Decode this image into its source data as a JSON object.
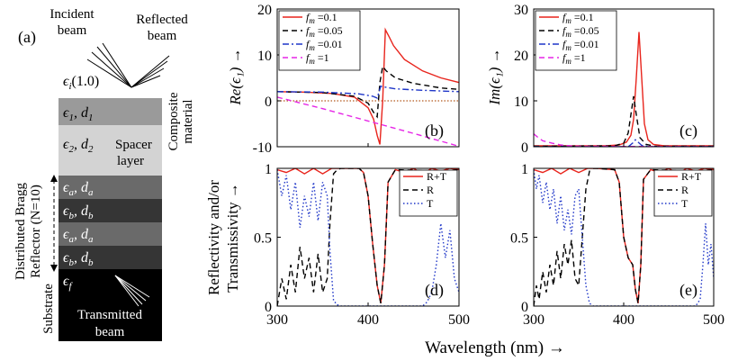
{
  "schematic": {
    "panel_label": "(a)",
    "incident_beam": [
      "Incident",
      "beam"
    ],
    "reflected_beam": [
      "Reflected",
      "beam"
    ],
    "eps_i": "ϵ",
    "eps_i_sub": "i",
    "eps_i_val": "(1.0)",
    "layer1_a": "ϵ",
    "layer1_sub": "1",
    "layer1_b": ", d",
    "layer1_sub2": "1",
    "composite_label": [
      "Composite",
      "material"
    ],
    "layer2_a": "ϵ",
    "layer2_sub": "2",
    "layer2_b": ", d",
    "layer2_sub2": "2",
    "spacer_label": [
      "Spacer",
      "layer"
    ],
    "dbr_label": [
      "Distributed Bragg",
      "Reflector (N=10)"
    ],
    "layer_a_sym": "ϵ",
    "layer_a_sub": "a",
    "layer_a_d": ", d",
    "layer_a_dsub": "a",
    "layer_b_sym": "ϵ",
    "layer_b_sub": "b",
    "layer_b_d": ", d",
    "layer_b_dsub": "b",
    "substrate_label": "Substrate",
    "eps_f": "ϵ",
    "eps_f_sub": "f",
    "transmitted_beam": [
      "Transmitted",
      "beam"
    ]
  },
  "colors": {
    "red": "#e8241c",
    "black": "#000000",
    "blue": "#1f36c8",
    "magenta": "#e626e6",
    "brown": "#b35a1f",
    "layer1": "#9a9a9a",
    "layer2": "#d3d3d3",
    "layer_a": "#6a6a6a",
    "layer_b": "#353535",
    "substrate": "#000000"
  },
  "chart_data": [
    {
      "id": "b",
      "type": "line",
      "panel_label": "(b)",
      "ylabel": "Re(ϵ₁) →",
      "xlim": [
        300,
        500
      ],
      "ylim": [
        -10,
        20
      ],
      "yticks": [
        "-10",
        "0",
        "10",
        "20"
      ],
      "legend": "top-left",
      "series": [
        {
          "name": "fm =0.1",
          "name_main": "f",
          "name_sub": "m",
          "name_rest": " =0.1",
          "color": "red",
          "style": "solid",
          "x": [
            300,
            330,
            360,
            385,
            400,
            406,
            410,
            413,
            416,
            419,
            423,
            428,
            440,
            460,
            480,
            500
          ],
          "y": [
            2,
            1.9,
            1.6,
            0.8,
            -1.5,
            -4,
            -7.5,
            -9.5,
            0,
            15.5,
            14,
            12,
            9,
            6.5,
            5,
            4
          ]
        },
        {
          "name": "fm =0.05",
          "name_main": "f",
          "name_sub": "m",
          "name_rest": " =0.05",
          "color": "black",
          "style": "dashed",
          "x": [
            300,
            350,
            385,
            400,
            406,
            410,
            413,
            416,
            420,
            430,
            450,
            480,
            500
          ],
          "y": [
            2,
            1.8,
            1,
            -0.5,
            -2.5,
            -3.5,
            4,
            7.5,
            6.5,
            5,
            3.8,
            2.8,
            2.5
          ]
        },
        {
          "name": "fm =0.01",
          "name_main": "f",
          "name_sub": "m",
          "name_rest": " =0.01",
          "color": "blue",
          "style": "dashdot",
          "x": [
            300,
            350,
            390,
            405,
            410,
            414,
            418,
            430,
            460,
            500
          ],
          "y": [
            2,
            1.9,
            1.5,
            1,
            0.6,
            3.2,
            3,
            2.6,
            2.3,
            2
          ]
        },
        {
          "name": "fm =1",
          "name_main": "f",
          "name_sub": "m",
          "name_rest": " =1",
          "color": "magenta",
          "style": "dashed",
          "x": [
            300,
            350,
            400,
            450,
            500
          ],
          "y": [
            0.8,
            -1.7,
            -4.4,
            -7.1,
            -9.9
          ]
        }
      ],
      "reference_line": {
        "y": 0,
        "color": "brown",
        "style": "dotted"
      }
    },
    {
      "id": "c",
      "type": "line",
      "panel_label": "(c)",
      "ylabel": "Im(ϵ₁) →",
      "xlim": [
        300,
        500
      ],
      "ylim": [
        0,
        30
      ],
      "yticks": [
        "0",
        "10",
        "20",
        "30"
      ],
      "legend": "top-left",
      "series": [
        {
          "name": "fm =0.1",
          "name_main": "f",
          "name_sub": "m",
          "name_rest": " =0.1",
          "color": "red",
          "style": "solid",
          "x": [
            300,
            380,
            395,
            403,
            408,
            411,
            414,
            417,
            420,
            423,
            427,
            433,
            445,
            500
          ],
          "y": [
            0.2,
            0.2,
            0.4,
            1,
            2.5,
            6,
            15,
            25,
            15,
            5,
            1.5,
            0.5,
            0.2,
            0.2
          ]
        },
        {
          "name": "fm =0.05",
          "name_main": "f",
          "name_sub": "m",
          "name_rest": " =0.05",
          "color": "black",
          "style": "dashed",
          "x": [
            300,
            390,
            400,
            405,
            408,
            411,
            414,
            418,
            425,
            435,
            500
          ],
          "y": [
            0.1,
            0.2,
            0.8,
            3,
            7,
            11,
            7,
            2,
            0.5,
            0.1,
            0.1
          ]
        },
        {
          "name": "fm =0.01",
          "name_main": "f",
          "name_sub": "m",
          "name_rest": " =0.01",
          "color": "blue",
          "style": "dashdot",
          "x": [
            300,
            405,
            410,
            413,
            416,
            420,
            430,
            500
          ],
          "y": [
            0,
            0,
            0.8,
            1.5,
            1,
            0.3,
            0,
            0
          ]
        },
        {
          "name": "fm =1",
          "name_main": "f",
          "name_sub": "m",
          "name_rest": " =1",
          "color": "magenta",
          "style": "dashed",
          "x": [
            300,
            305,
            310,
            320,
            330,
            340,
            350,
            500
          ],
          "y": [
            2.8,
            2,
            1.3,
            0.8,
            0.4,
            0.2,
            0.1,
            0
          ]
        }
      ]
    },
    {
      "id": "d",
      "type": "line",
      "panel_label": "(d)",
      "ylabel": [
        "Reflectivity and/or",
        "Transmissivity →"
      ],
      "xlim": [
        300,
        500
      ],
      "ylim": [
        0,
        1
      ],
      "yticks": [
        "0",
        "0.5",
        "1"
      ],
      "xticks": [
        "300",
        "400",
        "500"
      ],
      "legend": "top-right",
      "series": [
        {
          "name": "R+T",
          "color": "red",
          "style": "solid",
          "x": [
            300,
            310,
            320,
            330,
            340,
            350,
            360,
            370,
            390,
            395,
            400,
            405,
            410,
            414,
            418,
            422,
            430,
            440,
            450,
            460,
            470,
            480,
            490,
            500
          ],
          "y": [
            0.99,
            0.97,
            1,
            0.96,
            1,
            0.96,
            1,
            1,
            1,
            0.97,
            0.8,
            0.45,
            0.15,
            0.02,
            0.3,
            0.9,
            0.99,
            0.97,
            1,
            0.96,
            1,
            0.98,
            1,
            0.99
          ]
        },
        {
          "name": "R",
          "color": "black",
          "style": "dashed",
          "x": [
            300,
            305,
            310,
            315,
            320,
            325,
            330,
            335,
            340,
            345,
            350,
            355,
            358,
            362,
            366,
            370,
            390,
            395,
            400,
            405,
            410,
            414,
            418,
            422,
            430,
            480,
            500
          ],
          "y": [
            0,
            0.2,
            0.05,
            0.3,
            0.1,
            0.43,
            0.2,
            0.35,
            0.1,
            0.38,
            0.1,
            0.2,
            0.6,
            0.96,
            0.99,
            1,
            1,
            0.97,
            0.8,
            0.45,
            0.15,
            0.02,
            0.3,
            0.9,
            0.99,
            0.98,
            0.99
          ]
        },
        {
          "name": "T",
          "color": "blue",
          "style": "dotted",
          "x": [
            300,
            305,
            310,
            315,
            320,
            325,
            330,
            335,
            340,
            345,
            350,
            355,
            358,
            362,
            366,
            370,
            460,
            465,
            470,
            475,
            480,
            485,
            490,
            495,
            500
          ],
          "y": [
            0.99,
            0.8,
            0.95,
            0.7,
            0.9,
            0.57,
            0.8,
            0.65,
            0.9,
            0.62,
            0.9,
            0.8,
            0.4,
            0.04,
            0.01,
            0,
            0,
            0.03,
            0.1,
            0.3,
            0.6,
            0.35,
            0.55,
            0.2,
            0.1
          ]
        }
      ]
    },
    {
      "id": "e",
      "type": "line",
      "panel_label": "(e)",
      "xlim": [
        300,
        500
      ],
      "ylim": [
        0,
        1
      ],
      "yticks": [
        "0",
        "0.5",
        "1"
      ],
      "xticks": [
        "300",
        "400",
        "500"
      ],
      "legend": "top-right",
      "series": [
        {
          "name": "R+T",
          "color": "red",
          "style": "solid",
          "x": [
            300,
            310,
            320,
            330,
            340,
            350,
            360,
            370,
            390,
            395,
            400,
            405,
            410,
            413,
            416,
            419,
            422,
            430,
            440,
            450,
            460,
            470,
            480,
            490,
            500
          ],
          "y": [
            0.99,
            0.97,
            1,
            0.96,
            1,
            0.97,
            1,
            1,
            0.99,
            0.9,
            0.5,
            0.35,
            0.3,
            0.12,
            0.02,
            0.3,
            0.92,
            0.99,
            0.97,
            1,
            0.96,
            1,
            0.98,
            1,
            0.99
          ]
        },
        {
          "name": "R",
          "color": "black",
          "style": "dashed",
          "x": [
            300,
            303,
            306,
            310,
            314,
            318,
            322,
            326,
            330,
            334,
            338,
            342,
            346,
            350,
            354,
            358,
            362,
            366,
            370,
            390,
            395,
            400,
            405,
            410,
            413,
            416,
            419,
            422,
            430,
            480,
            500
          ],
          "y": [
            0,
            0.15,
            0.05,
            0.25,
            0.1,
            0.3,
            0.15,
            0.4,
            0.2,
            0.45,
            0.3,
            0.48,
            0.2,
            0.15,
            0.5,
            0.85,
            0.98,
            1,
            1,
            0.99,
            0.9,
            0.5,
            0.35,
            0.3,
            0.12,
            0.02,
            0.3,
            0.92,
            0.99,
            0.98,
            0.99
          ]
        },
        {
          "name": "T",
          "color": "blue",
          "style": "dotted",
          "x": [
            300,
            303,
            306,
            310,
            314,
            318,
            322,
            326,
            330,
            334,
            338,
            342,
            346,
            350,
            354,
            358,
            362,
            366,
            370,
            480,
            485,
            488,
            491,
            494,
            497,
            500
          ],
          "y": [
            0.99,
            0.85,
            0.95,
            0.75,
            0.9,
            0.7,
            0.85,
            0.6,
            0.8,
            0.55,
            0.7,
            0.52,
            0.8,
            0.85,
            0.5,
            0.15,
            0.02,
            0,
            0,
            0,
            0.05,
            0.3,
            0.6,
            0.3,
            0.45,
            0.2
          ]
        }
      ]
    }
  ],
  "common": {
    "xlabel": "Wavelength (nm) →"
  }
}
